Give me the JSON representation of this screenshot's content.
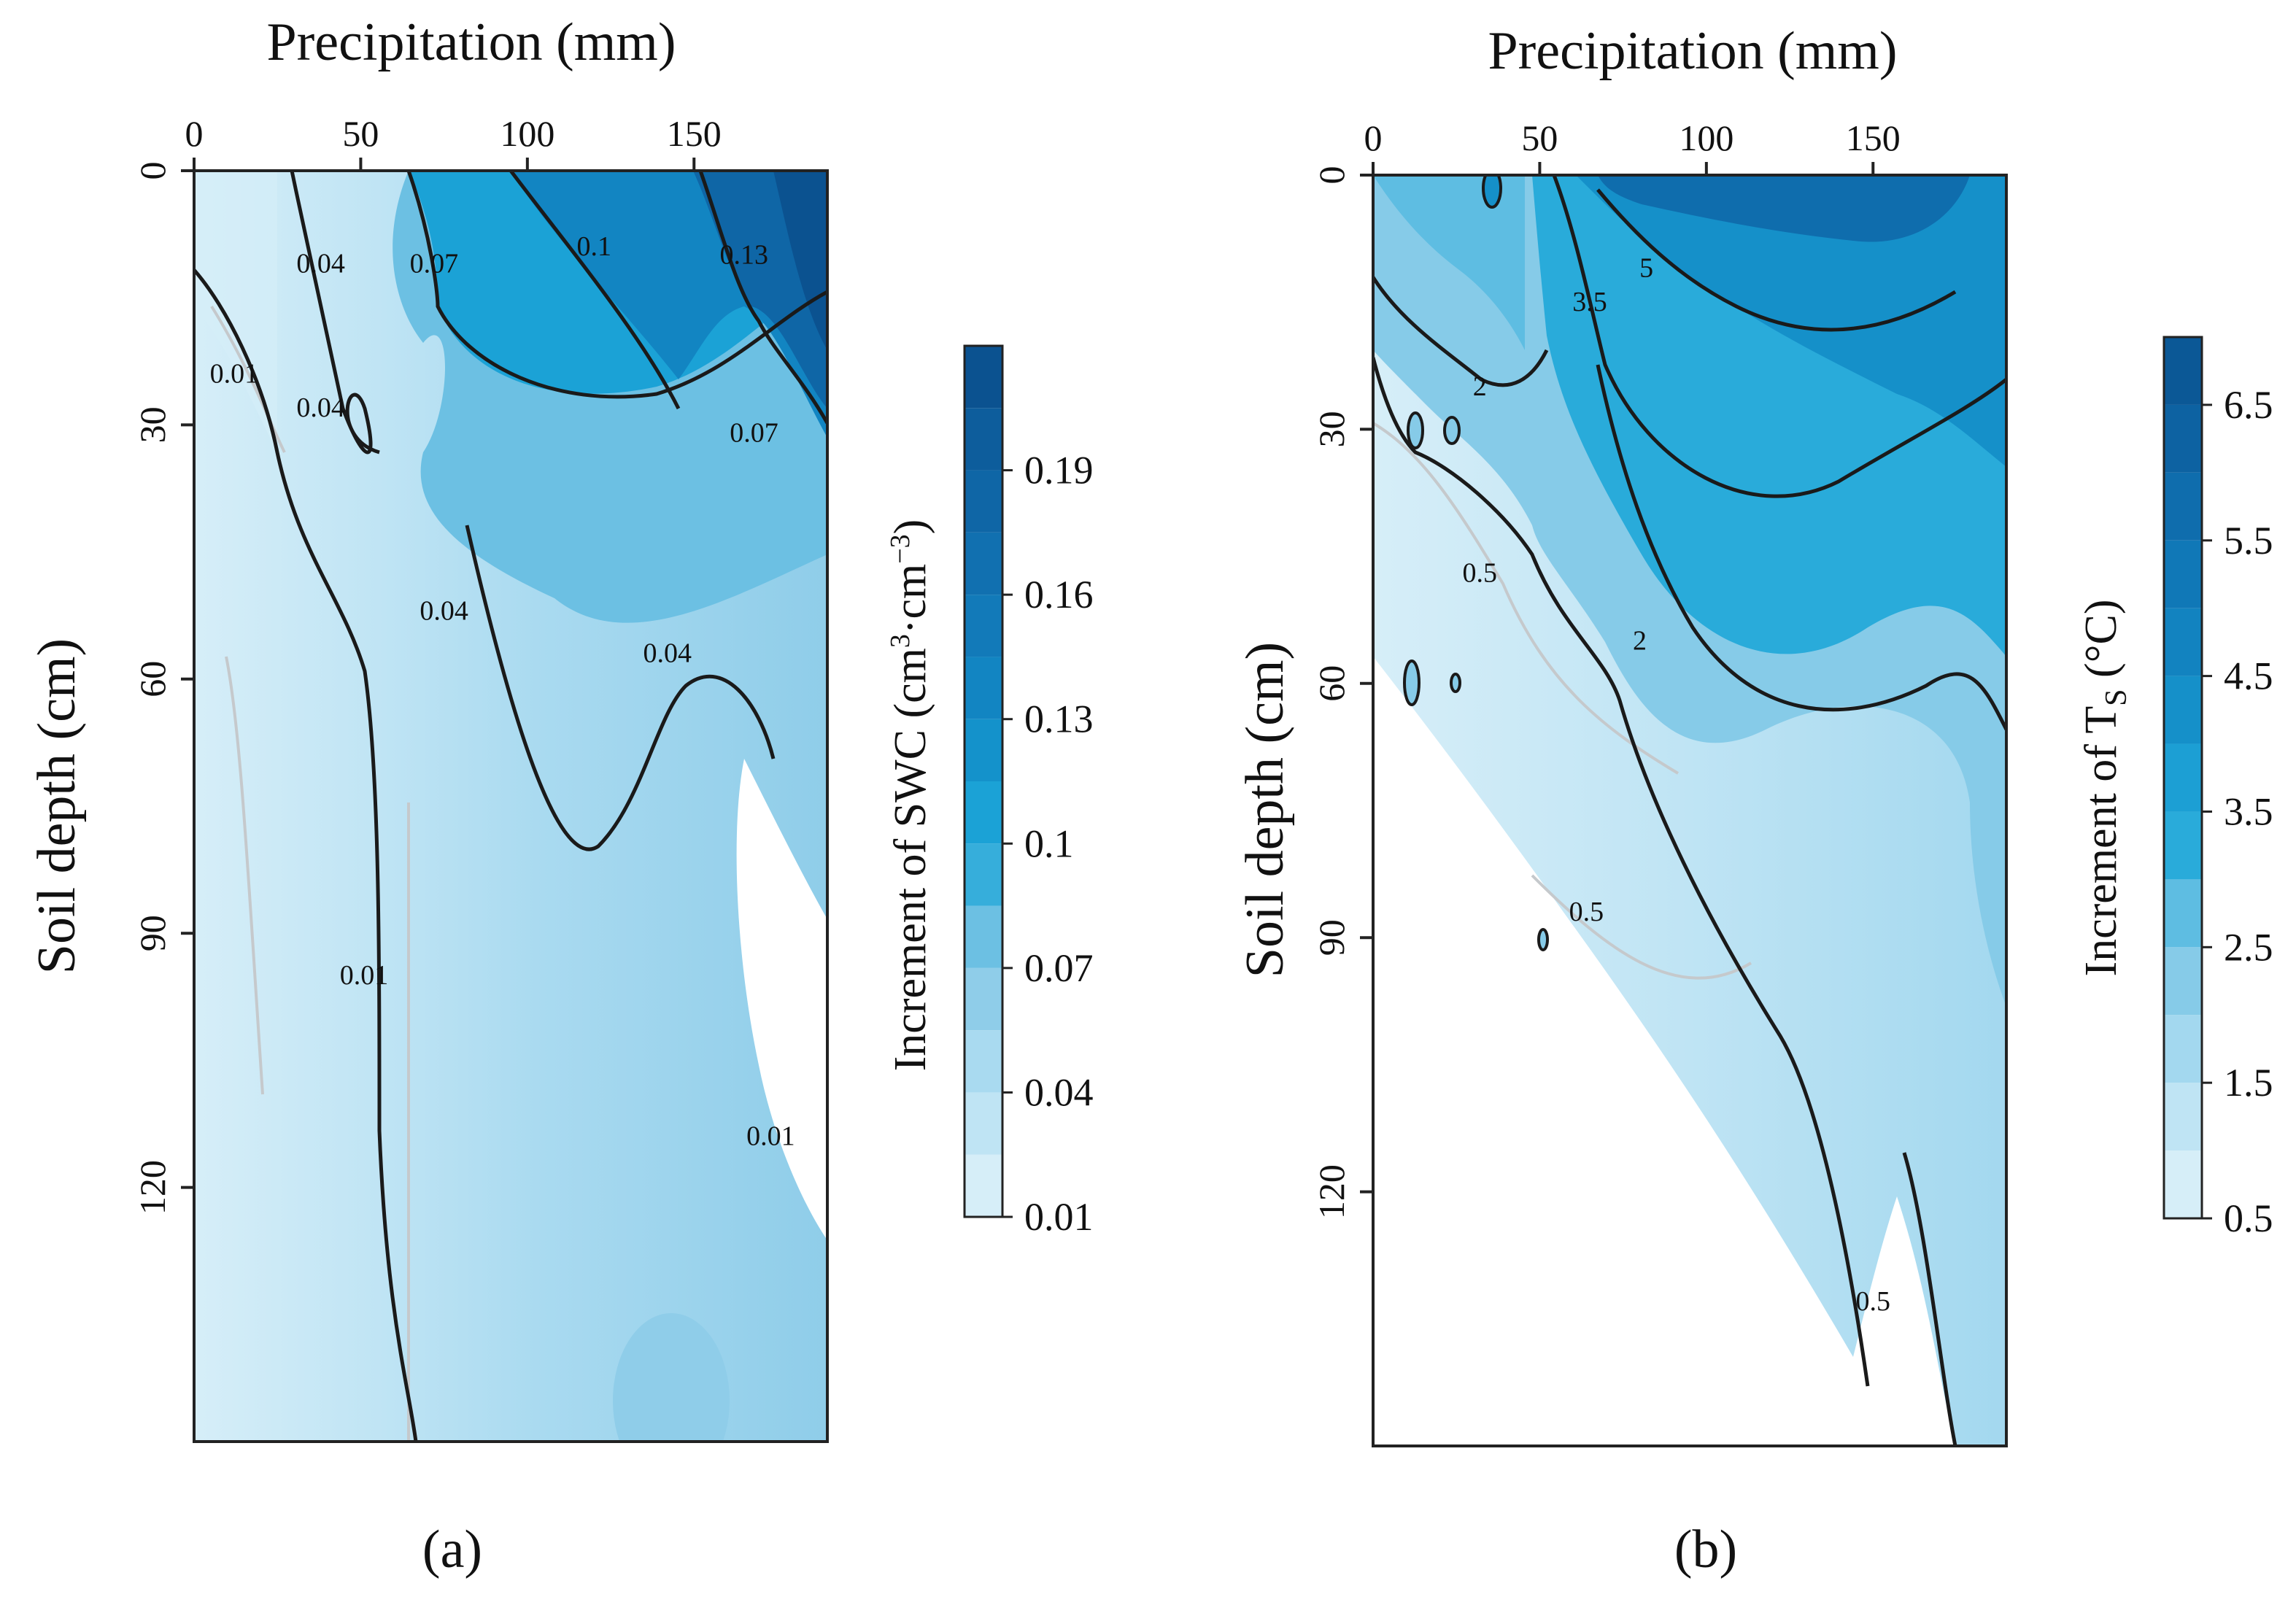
{
  "chart_data": [
    {
      "type": "contour",
      "panel_label": "(a)",
      "title": "",
      "xlabel": "Precipitation (mm)",
      "xlabel_position": "top",
      "ylabel": "Soil depth (cm)",
      "xlim": [
        0,
        190
      ],
      "ylim": [
        150,
        0
      ],
      "x_ticks": [
        0,
        50,
        100,
        150
      ],
      "y_ticks": [
        0,
        30,
        60,
        90,
        120
      ],
      "colorbar": {
        "title_pre": "Increment of SWC (cm",
        "title_sup1": "3",
        "title_mid": "·cm",
        "title_sup2": "−3",
        "title_post": ")",
        "min": 0.01,
        "max": 0.22,
        "levels": [
          0.01,
          0.025,
          0.04,
          0.055,
          0.07,
          0.085,
          0.1,
          0.115,
          0.13,
          0.145,
          0.16,
          0.175,
          0.19,
          0.205,
          0.22
        ],
        "tick_values": [
          0.01,
          0.04,
          0.07,
          0.1,
          0.13,
          0.16,
          0.19
        ],
        "tick_labels": [
          "0.01",
          "0.04",
          "0.07",
          "0.1",
          "0.13",
          "0.16",
          "0.19"
        ],
        "colors": [
          "#d6eef8",
          "#bfe4f4",
          "#a9daf0",
          "#8fcde9",
          "#6cc0e3",
          "#36aedb",
          "#1ba2d6",
          "#1492cb",
          "#1285c2",
          "#127ab9",
          "#1170b0",
          "#0f66a6",
          "#0d5d9c",
          "#0b5290"
        ]
      },
      "contour_labels": [
        {
          "text": "0.01",
          "x": 12,
          "y": 25
        },
        {
          "text": "0.04",
          "x": 38,
          "y": 12
        },
        {
          "text": "0.04",
          "x": 38,
          "y": 29
        },
        {
          "text": "0.07",
          "x": 72,
          "y": 12
        },
        {
          "text": "0.1",
          "x": 120,
          "y": 10
        },
        {
          "text": "0.13",
          "x": 165,
          "y": 11
        },
        {
          "text": "0.07",
          "x": 168,
          "y": 32
        },
        {
          "text": "0.04",
          "x": 75,
          "y": 53
        },
        {
          "text": "0.04",
          "x": 142,
          "y": 58
        },
        {
          "text": "0.01",
          "x": 51,
          "y": 96
        },
        {
          "text": "0.01",
          "x": 173,
          "y": 115
        }
      ]
    },
    {
      "type": "contour",
      "panel_label": "(b)",
      "title": "",
      "xlabel": "Precipitation (mm)",
      "xlabel_position": "top",
      "ylabel": "Soil depth (cm)",
      "xlim": [
        0,
        190
      ],
      "ylim": [
        150,
        0
      ],
      "x_ticks": [
        0,
        50,
        100,
        150
      ],
      "y_ticks": [
        0,
        30,
        60,
        90,
        120
      ],
      "colorbar": {
        "title_pre": "Increment of T",
        "title_sub": "S",
        "title_post": " (°C)",
        "min": 0.5,
        "max": 7.0,
        "levels": [
          0.5,
          1.0,
          1.5,
          2.0,
          2.5,
          3.0,
          3.5,
          4.0,
          4.5,
          5.0,
          5.5,
          6.0,
          6.5,
          7.0
        ],
        "tick_values": [
          0.5,
          1.5,
          2.5,
          3.5,
          4.5,
          5.5,
          6.5
        ],
        "tick_labels": [
          "0.5",
          "1.5",
          "2.5",
          "3.5",
          "4.5",
          "5.5",
          "6.5"
        ],
        "colors": [
          "#d6eef8",
          "#bfe4f4",
          "#a3d8ef",
          "#86cbe8",
          "#5ebde2",
          "#29abda",
          "#1c9fd4",
          "#1590c9",
          "#1283c0",
          "#1078b7",
          "#0f6dad",
          "#0d62a2",
          "#0b5896"
        ]
      },
      "contour_labels": [
        {
          "text": "0.5",
          "x": 32,
          "y": 48
        },
        {
          "text": "2",
          "x": 32,
          "y": 26
        },
        {
          "text": "3.5",
          "x": 65,
          "y": 16
        },
        {
          "text": "5",
          "x": 82,
          "y": 12
        },
        {
          "text": "2",
          "x": 80,
          "y": 56
        },
        {
          "text": "0.5",
          "x": 64,
          "y": 88
        },
        {
          "text": "0.5",
          "x": 150,
          "y": 134
        }
      ]
    }
  ]
}
